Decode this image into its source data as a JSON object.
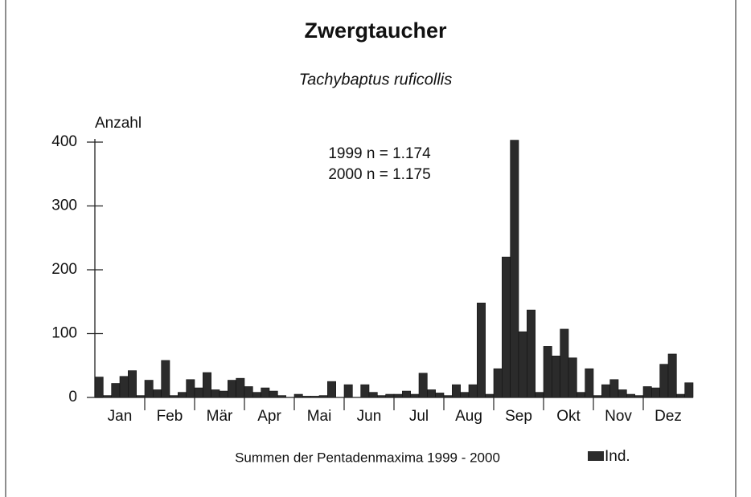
{
  "chart_data": {
    "type": "bar",
    "title": "Zwergtaucher",
    "subtitle": "Tachybaptus ruficollis",
    "y_label": "Anzahl",
    "x_label": "Summen der Pentadenmaxima 1999 - 2000",
    "annotations": [
      "1999 n = 1.174",
      "2000 n = 1.175"
    ],
    "months": [
      "Jan",
      "Feb",
      "Mär",
      "Apr",
      "Mai",
      "Jun",
      "Jul",
      "Aug",
      "Sep",
      "Okt",
      "Nov",
      "Dez"
    ],
    "series": [
      {
        "name": "Ind.",
        "color": "#2b2b2b",
        "values": [
          32,
          3,
          22,
          33,
          42,
          3,
          27,
          12,
          58,
          3,
          8,
          28,
          15,
          39,
          12,
          10,
          27,
          30,
          17,
          8,
          15,
          10,
          3,
          0,
          5,
          2,
          2,
          3,
          25,
          0,
          20,
          0,
          20,
          8,
          3,
          5,
          5,
          10,
          5,
          38,
          12,
          7,
          3,
          20,
          8,
          20,
          148,
          5,
          45,
          220,
          403,
          103,
          137,
          8,
          80,
          65,
          107,
          62,
          8,
          45,
          3,
          20,
          28,
          12,
          5,
          3,
          17,
          15,
          52,
          68,
          5,
          23
        ]
      }
    ],
    "ylim": [
      0,
      405
    ],
    "yticks": [
      0,
      100,
      200,
      300,
      400
    ]
  }
}
